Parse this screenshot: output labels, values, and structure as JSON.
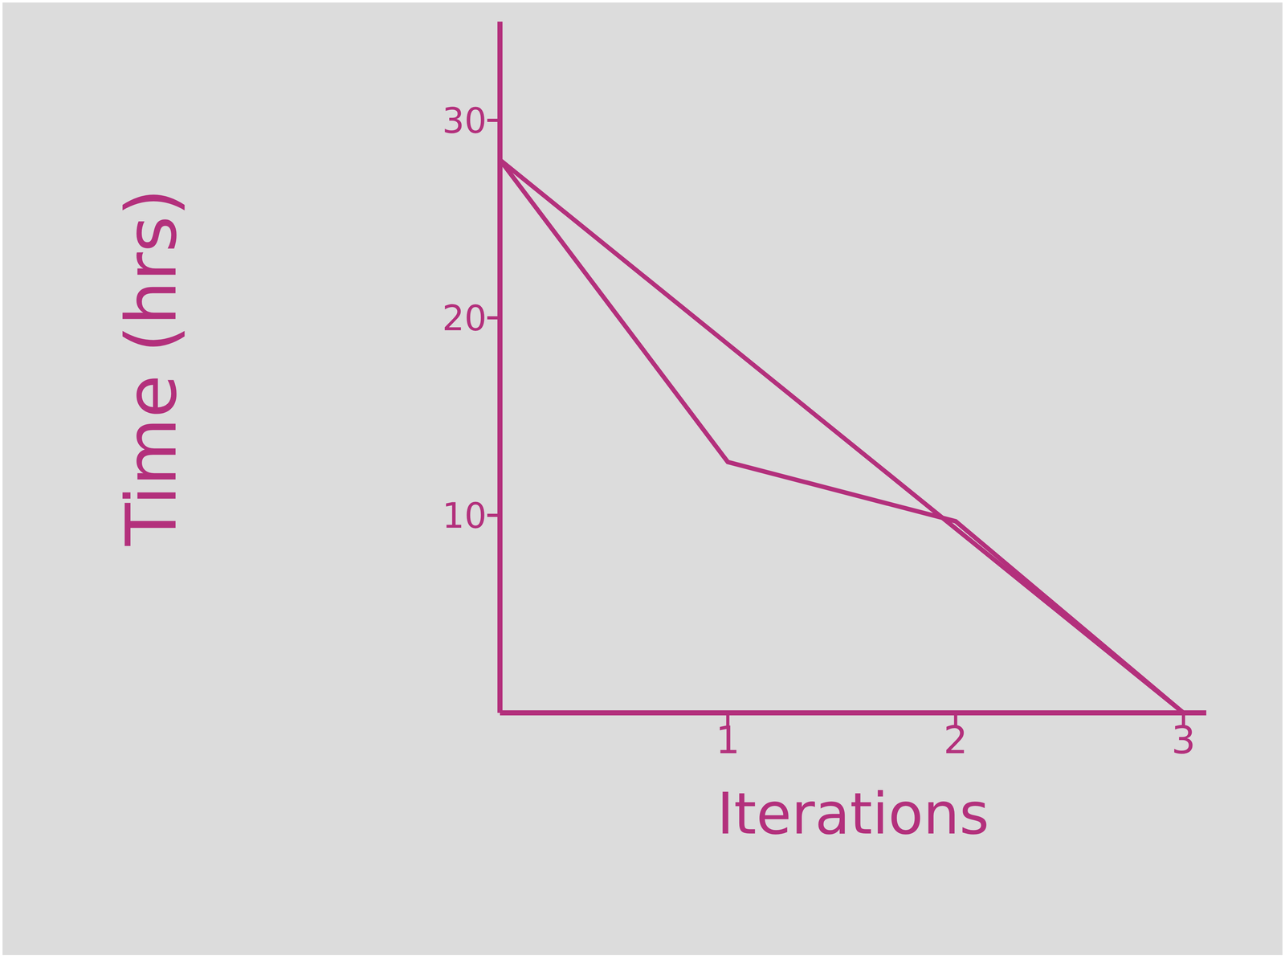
{
  "chart_data": {
    "type": "line",
    "x_label": "Iterations",
    "y_label": "Time (hrs)",
    "xlim": [
      0,
      3.1
    ],
    "xticks": [
      1,
      2,
      3
    ],
    "ylim": [
      0,
      35
    ],
    "yticks": [
      10,
      20,
      30
    ],
    "grid": false,
    "series": [
      {
        "color": "#b3307c",
        "x": [
          0,
          3
        ],
        "values": [
          28,
          0
        ]
      },
      {
        "color": "#b3307c",
        "x": [
          0,
          1,
          2,
          3
        ],
        "values": [
          28,
          12.7,
          9.7,
          0
        ]
      }
    ]
  }
}
